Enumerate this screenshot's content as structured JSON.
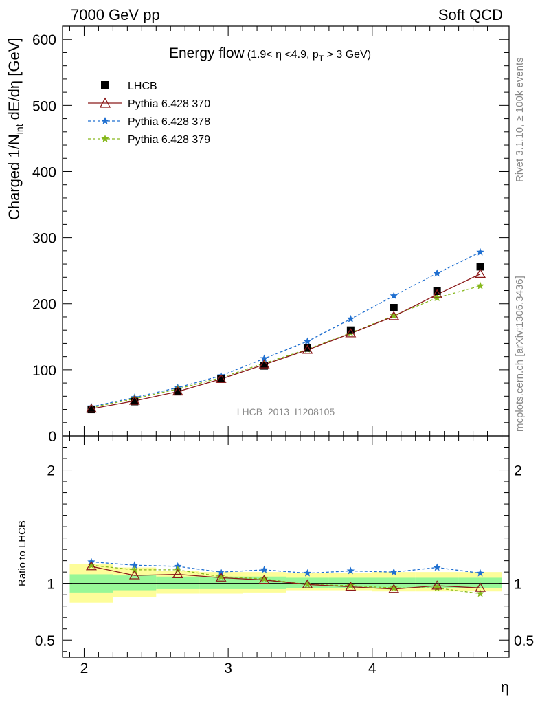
{
  "header": {
    "left": "7000 GeV pp",
    "right": "Soft QCD"
  },
  "title": {
    "main": "Energy flow",
    "sub_prefix": "(1.9< η <4.9, p",
    "sub_subscript": "T",
    "sub_suffix": " > 3 GeV)"
  },
  "side_labels": {
    "rivet": "Rivet 3.1.10, ≥ 100k events",
    "mcplots": "mcplots.cern.ch [arXiv:1306.3436]"
  },
  "watermark": "LHCB_2013_I1208105",
  "axes": {
    "main_ylabel_prefix": "Charged 1/N",
    "main_ylabel_subscript": "int",
    "main_ylabel_suffix": " dE/dη [GeV]",
    "ratio_ylabel": "Ratio to LHCB",
    "xlabel": "η"
  },
  "legend": {
    "items": [
      {
        "label": "LHCB",
        "marker": "square",
        "color": "#000000"
      },
      {
        "label": "Pythia 6.428 370",
        "marker": "triangle",
        "color": "#8b1a1a"
      },
      {
        "label": "Pythia 6.428 378",
        "marker": "star",
        "color": "#1f6fd0"
      },
      {
        "label": "Pythia 6.428 379",
        "marker": "star",
        "color": "#86b81c"
      }
    ]
  },
  "chart_data": {
    "type": "scatter",
    "x": [
      2.05,
      2.35,
      2.65,
      2.95,
      3.25,
      3.55,
      3.85,
      4.15,
      4.45,
      4.75
    ],
    "x_bins": [
      [
        1.9,
        2.2
      ],
      [
        2.2,
        2.5
      ],
      [
        2.5,
        2.8
      ],
      [
        2.8,
        3.1
      ],
      [
        3.1,
        3.4
      ],
      [
        3.4,
        3.7
      ],
      [
        3.7,
        4.0
      ],
      [
        4.0,
        4.3
      ],
      [
        4.3,
        4.6
      ],
      [
        4.6,
        4.9
      ]
    ],
    "xlim": [
      1.85,
      4.95
    ],
    "xticks": [
      "2",
      "3",
      "4"
    ],
    "main": {
      "ylim": [
        0,
        620
      ],
      "yticks": [
        "0",
        "100",
        "200",
        "300",
        "400",
        "500",
        "600"
      ],
      "series": [
        {
          "name": "LHCB",
          "values": [
            40,
            52,
            67,
            86,
            106,
            133,
            160,
            194,
            219,
            256
          ]
        },
        {
          "name": "Pythia 6.428 370",
          "values": [
            41,
            53,
            67,
            86,
            108,
            130,
            155,
            181,
            214,
            245
          ]
        },
        {
          "name": "Pythia 6.428 378",
          "values": [
            44,
            58,
            73,
            91,
            117,
            143,
            177,
            212,
            246,
            278
          ]
        },
        {
          "name": "Pythia 6.428 379",
          "values": [
            43,
            56,
            71,
            88,
            110,
            131,
            156,
            182,
            209,
            227
          ]
        }
      ]
    },
    "ratio": {
      "ylim": [
        0.35,
        2.3
      ],
      "yticks": [
        "0.5",
        "1",
        "2"
      ],
      "band_inner": [
        [
          0.92,
          1.08
        ],
        [
          0.94,
          1.07
        ],
        [
          0.95,
          1.06
        ],
        [
          0.95,
          1.06
        ],
        [
          0.95,
          1.06
        ],
        [
          0.96,
          1.05
        ],
        [
          0.96,
          1.05
        ],
        [
          0.96,
          1.05
        ],
        [
          0.96,
          1.05
        ],
        [
          0.96,
          1.05
        ]
      ],
      "band_outer": [
        [
          0.83,
          1.17
        ],
        [
          0.88,
          1.14
        ],
        [
          0.91,
          1.11
        ],
        [
          0.91,
          1.1
        ],
        [
          0.92,
          1.1
        ],
        [
          0.94,
          1.09
        ],
        [
          0.94,
          1.09
        ],
        [
          0.93,
          1.1
        ],
        [
          0.93,
          1.1
        ],
        [
          0.93,
          1.1
        ]
      ],
      "series": [
        {
          "name": "Pythia 6.428 370",
          "values": [
            1.15,
            1.07,
            1.08,
            1.05,
            1.03,
            0.99,
            0.97,
            0.95,
            0.98,
            0.96
          ]
        },
        {
          "name": "Pythia 6.428 378",
          "values": [
            1.19,
            1.16,
            1.15,
            1.1,
            1.12,
            1.09,
            1.11,
            1.1,
            1.14,
            1.09
          ]
        },
        {
          "name": "Pythia 6.428 379",
          "values": [
            1.16,
            1.12,
            1.12,
            1.06,
            1.04,
            0.99,
            0.98,
            0.96,
            0.96,
            0.91
          ]
        }
      ]
    }
  }
}
